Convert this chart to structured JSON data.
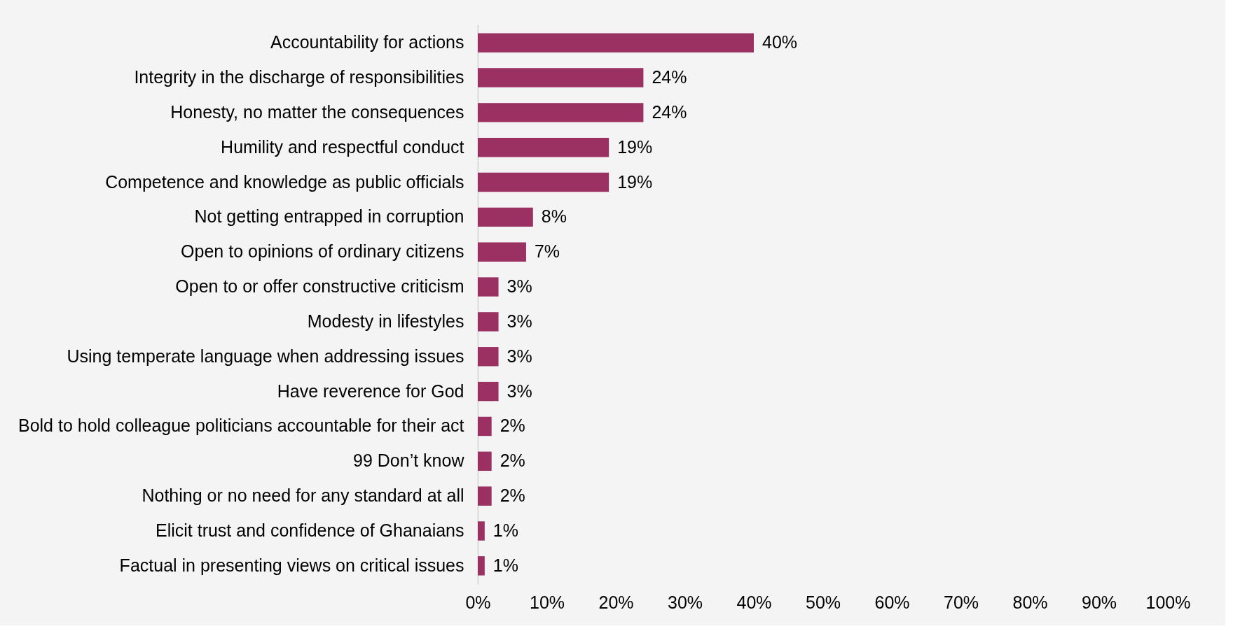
{
  "chart_data": {
    "type": "bar",
    "orientation": "horizontal",
    "categories": [
      "Accountability for actions",
      "Integrity in the discharge of responsibilities",
      "Honesty, no matter the consequences",
      "Humility and respectful conduct",
      "Competence and knowledge as public officials",
      "Not getting entrapped in corruption",
      "Open to opinions of ordinary citizens",
      "Open to or offer constructive criticism",
      "Modesty in lifestyles",
      "Using temperate language when addressing issues",
      "Have reverence for God",
      "Bold to hold colleague politicians accountable for their act",
      "99 Don’t know",
      "Nothing or no need for any standard at all",
      "Elicit trust and confidence of Ghanaians",
      "Factual in presenting views on critical issues"
    ],
    "values": [
      40,
      24,
      24,
      19,
      19,
      8,
      7,
      3,
      3,
      3,
      3,
      2,
      2,
      2,
      1,
      1
    ],
    "value_labels": [
      "40%",
      "24%",
      "24%",
      "19%",
      "19%",
      "8%",
      "7%",
      "3%",
      "3%",
      "3%",
      "3%",
      "2%",
      "2%",
      "2%",
      "1%",
      "1%"
    ],
    "color": "#9b3163",
    "xlim": [
      0,
      100
    ],
    "xticks": [
      {
        "value": 0,
        "label": "0%"
      },
      {
        "value": 10,
        "label": "10%"
      },
      {
        "value": 20,
        "label": "20%"
      },
      {
        "value": 30,
        "label": "30%"
      },
      {
        "value": 40,
        "label": "40%"
      },
      {
        "value": 50,
        "label": "50%"
      },
      {
        "value": 60,
        "label": "60%"
      },
      {
        "value": 70,
        "label": "70%"
      },
      {
        "value": 80,
        "label": "80%"
      },
      {
        "value": 90,
        "label": "90%"
      },
      {
        "value": 100,
        "label": "100%"
      }
    ],
    "grid": false
  }
}
